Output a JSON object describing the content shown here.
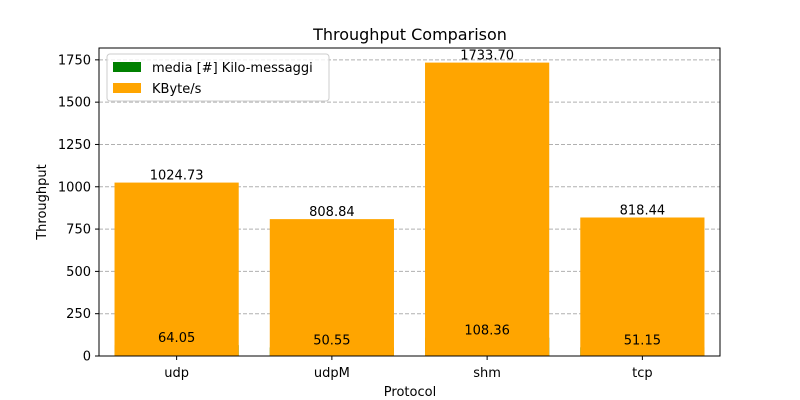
{
  "chart_data": {
    "type": "bar",
    "title": "Throughput Comparison",
    "xlabel": "Protocol",
    "ylabel": "Throughput",
    "categories": [
      "udp",
      "udpM",
      "shm",
      "tcp"
    ],
    "series": [
      {
        "name": "media [#] Kilo-messaggi",
        "color": "#008000",
        "values": [
          64.05,
          50.55,
          108.36,
          51.15
        ]
      },
      {
        "name": "KByte/s",
        "color": "#ffa500",
        "values": [
          1024.73,
          808.84,
          1733.7,
          818.44
        ]
      }
    ],
    "value_labels": {
      "messages": [
        "64.05",
        "50.55",
        "108.36",
        "51.15"
      ],
      "kbytes": [
        "1024.73",
        "808.84",
        "1733.70",
        "818.44"
      ]
    },
    "ylim": [
      0,
      1820
    ],
    "yticks": [
      0,
      250,
      500,
      750,
      1000,
      1250,
      1500,
      1750
    ],
    "ytick_labels": [
      "0",
      "250",
      "500",
      "750",
      "1000",
      "1250",
      "1500",
      "1750"
    ],
    "grid": "y-dashed",
    "legend_position": "top-left"
  }
}
